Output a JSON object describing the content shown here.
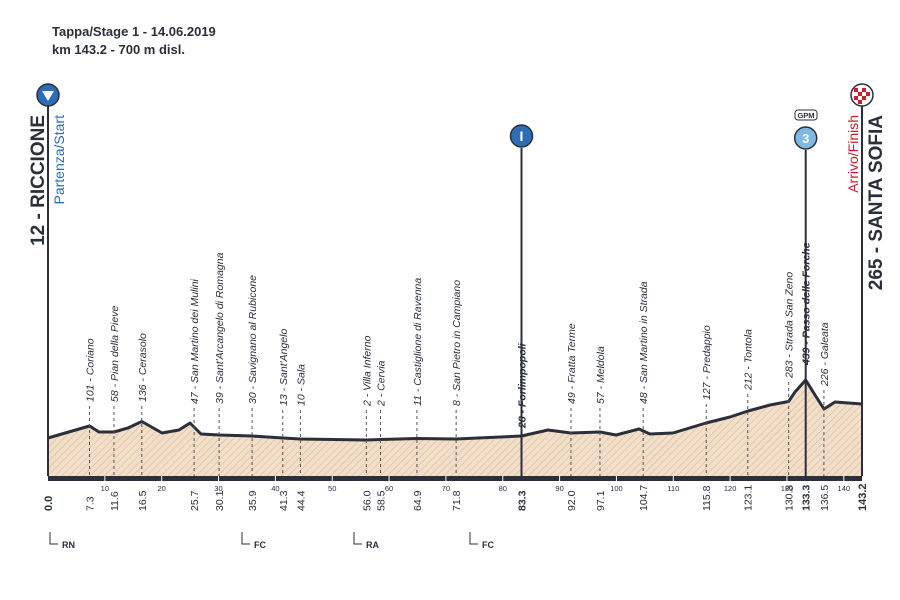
{
  "header": {
    "line1": "Tappa/Stage 1 - 14.06.2019",
    "line2": "km 143.2 - 700 m disl."
  },
  "start": {
    "name": "12 - RICCIONE",
    "label": "Partenza/Start",
    "km": {
      "value": 0,
      "label": "0.0"
    }
  },
  "finish": {
    "name": "265 - SANTA SOFIA",
    "label": "Arrivo/Finish",
    "km": 143.2
  },
  "markers": {
    "sprint": "I",
    "gpm": "GPM",
    "gpm_category": "3"
  },
  "waypoints": [
    {
      "label": "101 - Coriano",
      "km": 7.3,
      "bold": false
    },
    {
      "label": "58 - Pian della Pieve",
      "km": 11.6,
      "bold": false
    },
    {
      "label": "136 - Cerasolo",
      "km": 16.5,
      "bold": false
    },
    {
      "label": "47 - San Martino dei Mulini",
      "km": 25.7,
      "bold": false
    },
    {
      "label": "39 - Sant'Arcangelo di Romagna",
      "km": 30.1,
      "bold": false
    },
    {
      "label": "30 - Savignano al Rubicone",
      "km": 35.9,
      "bold": false
    },
    {
      "label": "13 - Sant'Angelo",
      "km": 41.3,
      "bold": false
    },
    {
      "label": "10 - Sala",
      "km": 44.4,
      "bold": false
    },
    {
      "label": "2 - Villa Inferno",
      "km": {
        "value": 56,
        "label": "56.0"
      },
      "bold": false
    },
    {
      "label": "2 - Cervia",
      "km": 58.5,
      "bold": false
    },
    {
      "label": "11 - Castiglione di Ravenna",
      "km": 64.9,
      "bold": false
    },
    {
      "label": "8 - San Pietro in Campiano",
      "km": 71.8,
      "bold": false
    },
    {
      "label": "28 - Forlimpopoli",
      "km": 83.3,
      "bold": true
    },
    {
      "label": "49 - Fratta Terme",
      "km": {
        "value": 92,
        "label": "92.0"
      },
      "bold": false
    },
    {
      "label": "57 - Meldola",
      "km": 97.1,
      "bold": false
    },
    {
      "label": "48 - San Martino in Strada",
      "km": 104.7,
      "bold": false
    },
    {
      "label": "127 - Predappio",
      "km": 115.8,
      "bold": false
    },
    {
      "label": "212 - Tontola",
      "km": 123.1,
      "bold": false
    },
    {
      "label": "283 - Strada San Zeno",
      "km": 130.3,
      "bold": false
    },
    {
      "label": "439 - Passo delle Forche",
      "km": 133.3,
      "bold": true
    },
    {
      "label": "226 - Galeata",
      "km": 136.5,
      "bold": false
    }
  ],
  "axis_ticks": [
    10,
    20,
    30,
    40,
    50,
    60,
    70,
    80,
    90,
    100,
    110,
    120,
    130,
    140
  ],
  "provinces": [
    "RN",
    "FC",
    "RA",
    "FC"
  ]
}
